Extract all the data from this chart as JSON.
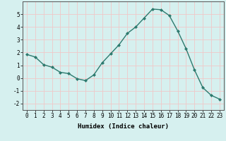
{
  "x": [
    0,
    1,
    2,
    3,
    4,
    5,
    6,
    7,
    8,
    9,
    10,
    11,
    12,
    13,
    14,
    15,
    16,
    17,
    18,
    19,
    20,
    21,
    22,
    23
  ],
  "y": [
    1.85,
    1.65,
    1.05,
    0.85,
    0.45,
    0.35,
    -0.05,
    -0.2,
    0.25,
    1.2,
    1.9,
    2.6,
    3.5,
    4.0,
    4.7,
    5.4,
    5.35,
    4.9,
    3.7,
    2.3,
    0.65,
    -0.75,
    -1.35,
    -1.65
  ],
  "line_color": "#2d7a6e",
  "marker": "D",
  "marker_size": 2.0,
  "line_width": 1.0,
  "bg_color": "#d6f0ef",
  "grid_color": "#f0c8c8",
  "xlabel": "Humidex (Indice chaleur)",
  "xlabel_fontsize": 6.5,
  "tick_fontsize": 5.5,
  "xlim": [
    -0.5,
    23.5
  ],
  "ylim": [
    -2.5,
    6.0
  ],
  "yticks": [
    -2,
    -1,
    0,
    1,
    2,
    3,
    4,
    5
  ],
  "xticks": [
    0,
    1,
    2,
    3,
    4,
    5,
    6,
    7,
    8,
    9,
    10,
    11,
    12,
    13,
    14,
    15,
    16,
    17,
    18,
    19,
    20,
    21,
    22,
    23
  ]
}
